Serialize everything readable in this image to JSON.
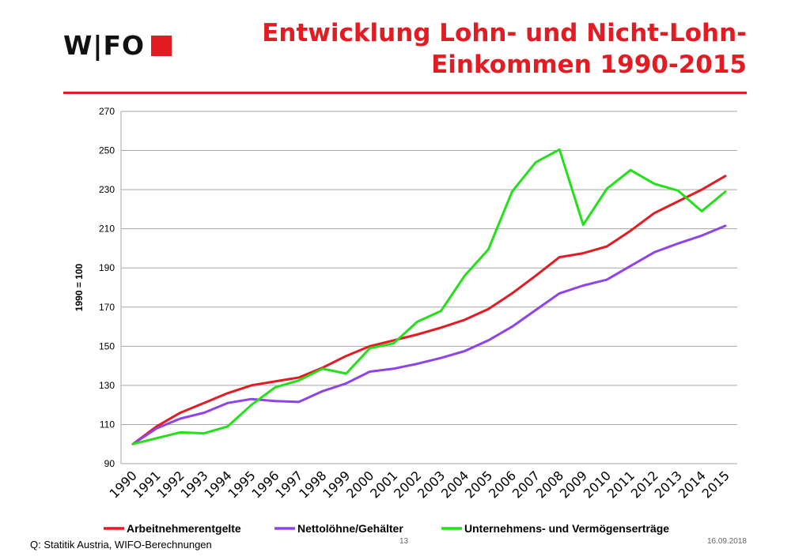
{
  "header": {
    "logo_text": "W|FO",
    "title_line1": "Entwicklung Lohn- und Nicht-Lohn-",
    "title_line2": "Einkommen 1990-2015"
  },
  "colors": {
    "accent": "#e31b23",
    "rule": "#e31b23",
    "grid": "#a6a6a6"
  },
  "chart_data": {
    "type": "line",
    "x": [
      "1990",
      "1991",
      "1992",
      "1993",
      "1994",
      "1995",
      "1996",
      "1997",
      "1998",
      "1999",
      "2000",
      "2001",
      "2002",
      "2003",
      "2004",
      "2005",
      "2006",
      "2007",
      "2008",
      "2009",
      "2010",
      "2011",
      "2012",
      "2013",
      "2014",
      "2015"
    ],
    "series": [
      {
        "name": "Arbeitnehmerentgelte",
        "color": "#e31b23",
        "values": [
          100,
          109,
          116,
          121,
          126,
          130,
          132,
          134,
          139,
          145,
          150,
          153,
          156,
          159.5,
          163.5,
          169,
          177,
          186,
          195.5,
          197.5,
          201,
          209,
          218,
          224,
          230,
          237
        ]
      },
      {
        "name": "Nettolöhne/Gehälter",
        "color": "#8e44e8",
        "values": [
          100,
          108,
          113,
          116,
          121,
          123,
          122,
          121.5,
          127,
          131,
          137,
          138.5,
          141,
          144,
          147.5,
          153,
          160,
          168.5,
          177,
          181,
          184,
          191,
          198,
          202.5,
          206.5,
          211.5
        ]
      },
      {
        "name": "Unternehmens- und Vermögenserträge",
        "color": "#22e01a",
        "values": [
          100,
          103,
          106,
          105.5,
          109,
          120,
          129,
          132.5,
          138.5,
          136,
          149,
          151.5,
          162.5,
          168,
          186,
          199.5,
          229,
          244,
          250.5,
          212,
          230.5,
          240,
          233,
          229.5,
          219,
          229
        ]
      }
    ],
    "ylabel": "1990 = 100",
    "xlabel": "",
    "ylim": [
      90,
      270
    ],
    "yticks": [
      90,
      110,
      130,
      150,
      170,
      190,
      210,
      230,
      250,
      270
    ],
    "grid": true,
    "legend_position": "bottom"
  },
  "footer": {
    "source": "Q: Statitik Austria, WIFO-Berechnungen",
    "page": "13",
    "date": "16.09.2018"
  }
}
